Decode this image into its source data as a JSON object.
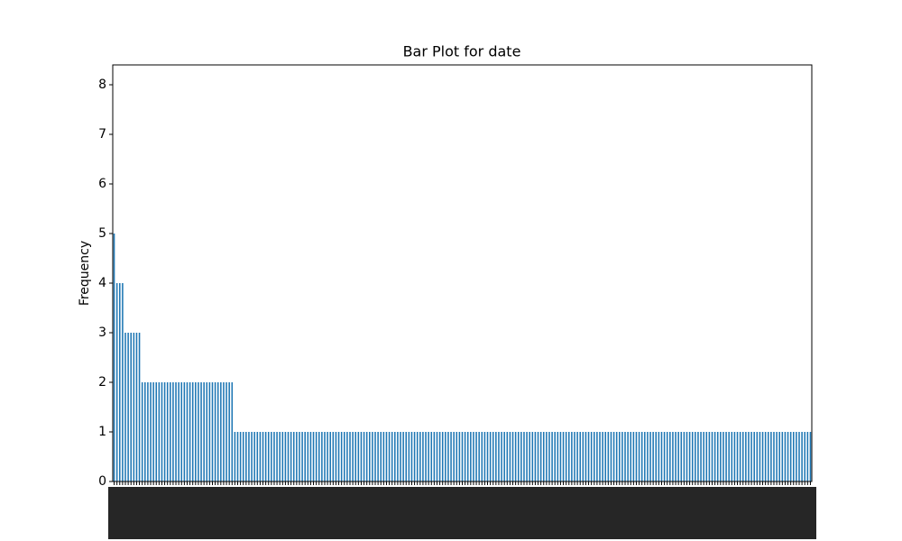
{
  "chart_data": {
    "type": "bar",
    "title": "Bar Plot for date",
    "y_label": "Frequency",
    "categories": [
      null,
      null,
      null,
      null,
      null,
      null,
      null,
      null,
      null,
      null,
      null,
      null,
      null,
      null,
      null,
      null,
      null,
      null,
      null,
      null,
      null,
      null,
      null,
      null,
      null,
      null,
      null,
      null,
      null,
      null,
      null,
      null,
      null,
      null,
      null,
      null,
      null,
      null,
      null,
      null,
      null,
      null,
      null,
      null,
      null,
      null,
      null,
      null,
      null,
      null,
      null,
      null,
      null,
      null,
      null,
      null,
      null,
      null,
      null,
      null,
      null,
      null,
      null,
      null,
      null,
      null,
      null,
      null,
      null,
      null,
      null,
      null,
      null,
      null,
      null,
      null,
      null,
      null,
      null,
      null,
      null,
      null,
      null,
      null,
      null,
      null,
      null,
      null,
      null,
      null,
      null,
      null,
      null,
      null,
      null,
      null,
      null,
      null,
      null,
      null,
      null,
      null,
      null,
      null,
      null,
      null,
      null,
      null,
      null,
      null,
      null,
      null,
      null,
      null,
      null,
      null,
      null,
      null,
      null,
      null,
      null,
      null,
      null,
      null,
      null,
      null,
      null,
      null,
      null,
      null,
      null,
      null,
      null,
      null,
      null,
      null,
      null,
      null,
      null,
      null,
      null,
      null,
      null,
      null,
      null,
      null,
      null,
      null,
      null,
      null,
      null,
      null,
      null,
      null,
      null,
      null,
      null,
      null,
      null,
      null,
      null,
      null,
      null,
      null,
      null,
      null,
      null,
      null,
      null,
      null,
      null,
      null,
      null,
      null,
      null,
      null,
      null,
      null,
      null,
      null,
      null,
      null,
      null,
      null,
      null,
      null,
      null,
      null,
      null,
      null,
      null,
      null,
      null,
      null,
      null,
      null,
      null,
      null,
      null,
      null,
      null,
      null,
      null,
      null,
      null,
      null,
      null,
      null,
      null,
      null,
      null,
      null,
      null,
      null,
      null,
      null,
      null,
      null,
      null,
      null,
      null,
      null,
      null,
      null,
      null,
      null,
      null,
      null,
      null,
      null,
      null,
      null,
      null,
      null,
      null,
      null,
      null,
      null,
      null,
      null,
      null,
      null,
      null,
      null,
      null,
      null,
      null,
      null,
      null
    ],
    "values": [
      5,
      4,
      4,
      4,
      3,
      3,
      3,
      3,
      3,
      3,
      2,
      2,
      2,
      2,
      2,
      2,
      2,
      2,
      2,
      2,
      2,
      2,
      2,
      2,
      2,
      2,
      2,
      2,
      2,
      2,
      2,
      2,
      2,
      2,
      2,
      2,
      2,
      2,
      2,
      2,
      2,
      2,
      2,
      1,
      1,
      1,
      1,
      1,
      1,
      1,
      1,
      1,
      1,
      1,
      1,
      1,
      1,
      1,
      1,
      1,
      1,
      1,
      1,
      1,
      1,
      1,
      1,
      1,
      1,
      1,
      1,
      1,
      1,
      1,
      1,
      1,
      1,
      1,
      1,
      1,
      1,
      1,
      1,
      1,
      1,
      1,
      1,
      1,
      1,
      1,
      1,
      1,
      1,
      1,
      1,
      1,
      1,
      1,
      1,
      1,
      1,
      1,
      1,
      1,
      1,
      1,
      1,
      1,
      1,
      1,
      1,
      1,
      1,
      1,
      1,
      1,
      1,
      1,
      1,
      1,
      1,
      1,
      1,
      1,
      1,
      1,
      1,
      1,
      1,
      1,
      1,
      1,
      1,
      1,
      1,
      1,
      1,
      1,
      1,
      1,
      1,
      1,
      1,
      1,
      1,
      1,
      1,
      1,
      1,
      1,
      1,
      1,
      1,
      1,
      1,
      1,
      1,
      1,
      1,
      1,
      1,
      1,
      1,
      1,
      1,
      1,
      1,
      1,
      1,
      1,
      1,
      1,
      1,
      1,
      1,
      1,
      1,
      1,
      1,
      1,
      1,
      1,
      1,
      1,
      1,
      1,
      1,
      1,
      1,
      1,
      1,
      1,
      1,
      1,
      1,
      1,
      1,
      1,
      1,
      1,
      1,
      1,
      1,
      1,
      1,
      1,
      1,
      1,
      1,
      1,
      1,
      1,
      1,
      1,
      1,
      1,
      1,
      1,
      1,
      1,
      1,
      1,
      1,
      1,
      1,
      1,
      1,
      1,
      1,
      1,
      1,
      1,
      1,
      1,
      1,
      1,
      1,
      1,
      1,
      1,
      1,
      1,
      1,
      1,
      1,
      1,
      1,
      1,
      1
    ],
    "color": "#1f77b4",
    "ylim": [
      0,
      8.4
    ],
    "yticks": [
      0,
      1,
      2,
      3,
      4,
      5,
      6,
      7,
      8
    ],
    "grid": false
  }
}
